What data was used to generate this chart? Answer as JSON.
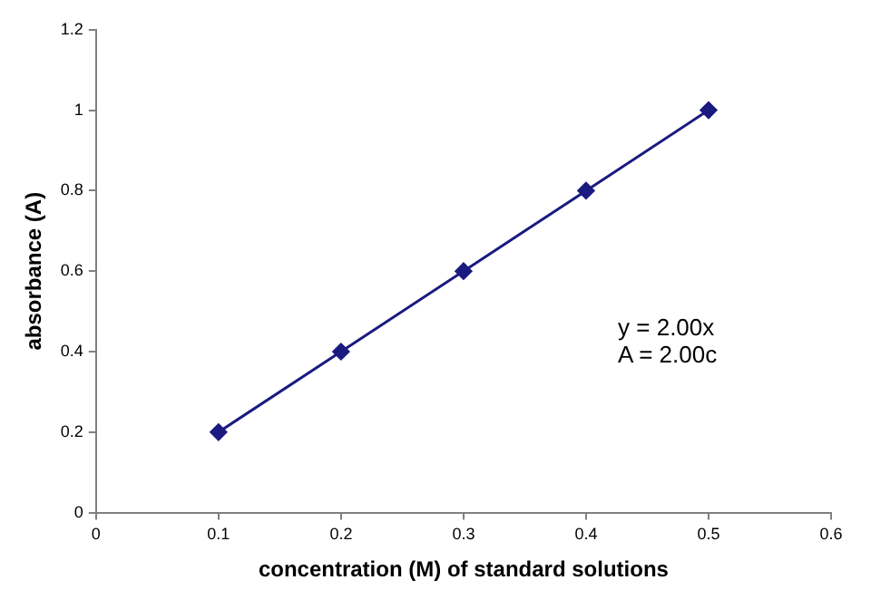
{
  "chart_data": {
    "type": "line",
    "xlabel": "concentration (M) of standard solutions",
    "ylabel": "absorbance (A)",
    "x": [
      0.1,
      0.2,
      0.3,
      0.4,
      0.5
    ],
    "series": [
      {
        "color": "#1a1a80",
        "values": [
          0.2,
          0.4,
          0.6,
          0.8,
          1.0
        ]
      }
    ],
    "xlim": [
      0,
      0.6
    ],
    "xticks": [
      0,
      0.1,
      0.2,
      0.3,
      0.4,
      0.5,
      0.6
    ],
    "ylim": [
      0,
      1.2
    ],
    "yticks": [
      0,
      0.2,
      0.4,
      0.6,
      0.8,
      1,
      1.2
    ],
    "annotations": [
      "y = 2.00x",
      "A = 2.00c"
    ],
    "grid": false,
    "legend": false,
    "marker": "diamond",
    "line_style": "solid"
  }
}
